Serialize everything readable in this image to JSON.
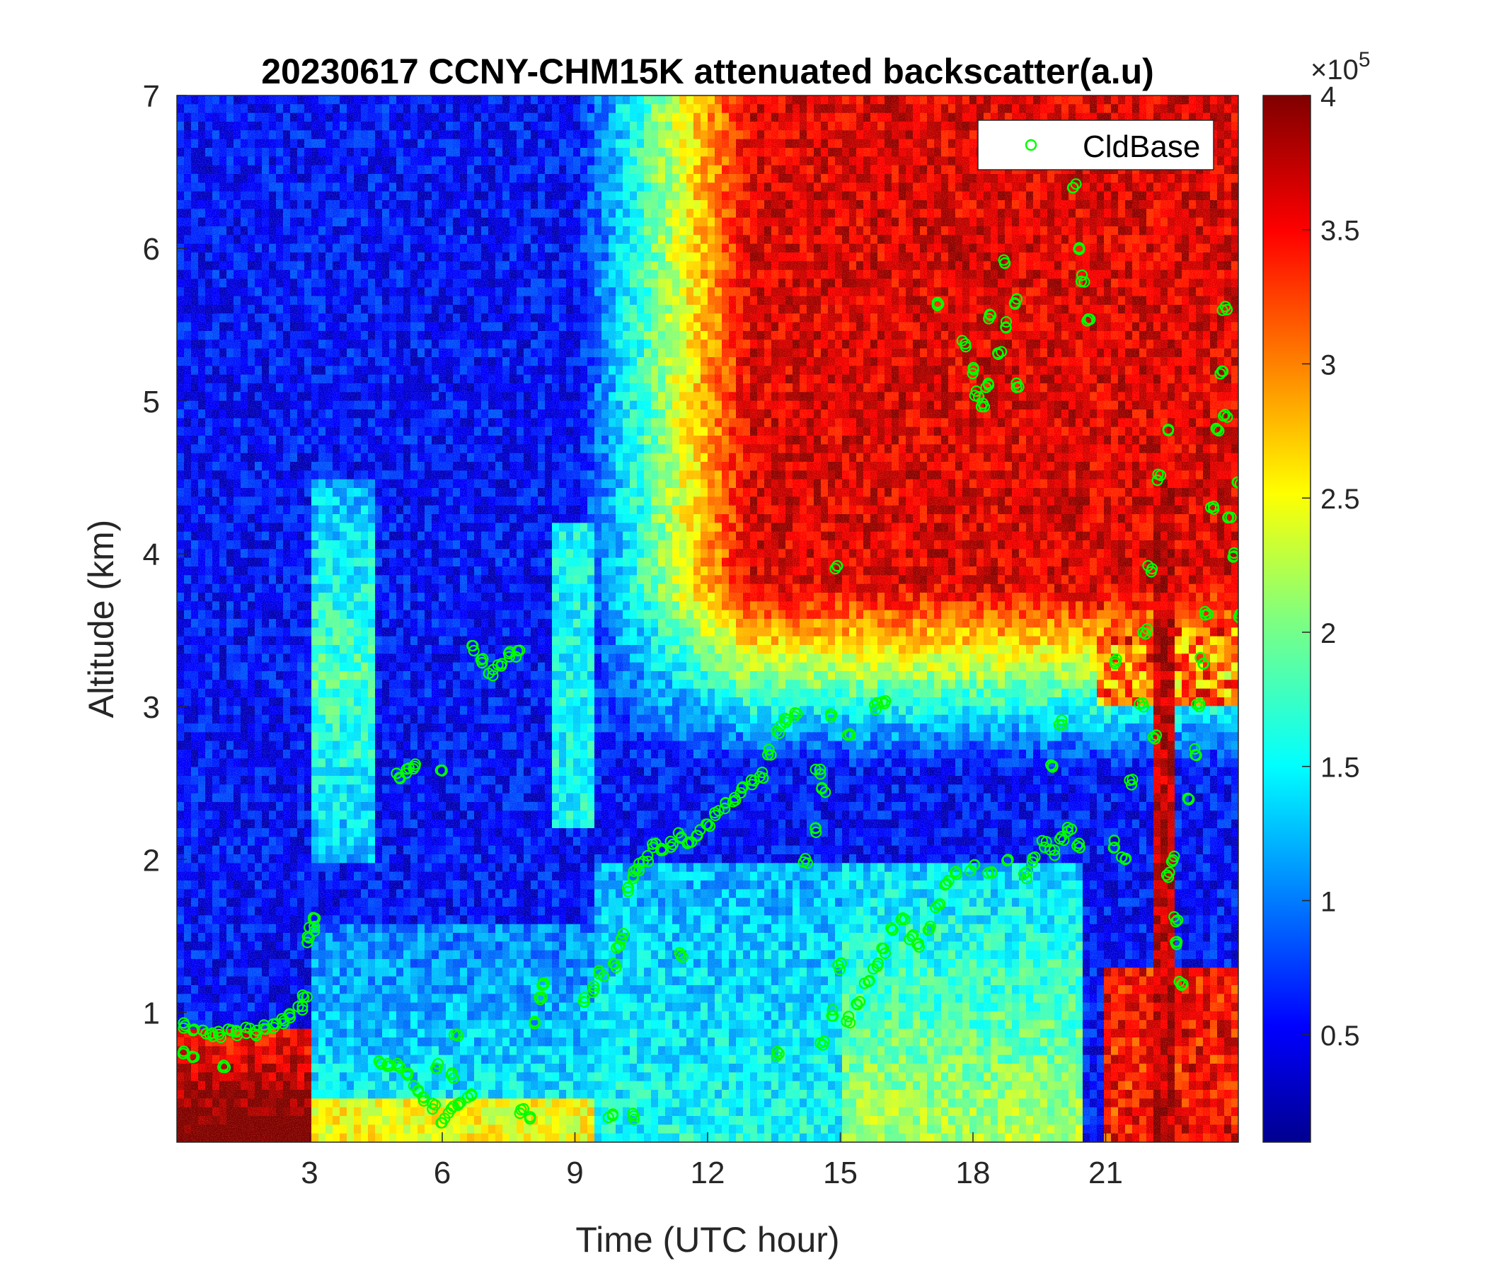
{
  "chart_data": {
    "type": "heatmap",
    "title": "20230617 CCNY-CHM15K attenuated backscatter(a.u)",
    "xlabel": "Time (UTC hour)",
    "ylabel": "Altitude (km)",
    "xlim": [
      0,
      24
    ],
    "ylim": [
      0.15,
      7
    ],
    "x_ticks": [
      3,
      6,
      9,
      12,
      15,
      18,
      21
    ],
    "x_tick_labels": [
      "3",
      "6",
      "9",
      "12",
      "15",
      "18",
      "21"
    ],
    "y_ticks": [
      1,
      2,
      3,
      4,
      5,
      6,
      7
    ],
    "y_tick_labels": [
      "1",
      "2",
      "3",
      "4",
      "5",
      "6",
      "7"
    ],
    "colorbar": {
      "clim": [
        0.1,
        4
      ],
      "ticks": [
        0.5,
        1,
        1.5,
        2,
        2.5,
        3,
        3.5,
        4
      ],
      "tick_labels": [
        "0.5",
        "1",
        "1.5",
        "2",
        "2.5",
        "3",
        "3.5",
        "4"
      ],
      "multiplier_prefix": "×10",
      "multiplier_exponent": "5",
      "colormap": "jet"
    },
    "legend": {
      "position": "top-right",
      "entries": [
        "CldBase"
      ]
    },
    "series": [
      {
        "name": "CldBase",
        "marker": "circle-open",
        "color": "#00ff00",
        "points": [
          [
            0.1,
            0.73
          ],
          [
            0.2,
            0.92
          ],
          [
            0.4,
            0.9
          ],
          [
            0.6,
            0.86
          ],
          [
            0.8,
            0.86
          ],
          [
            1.0,
            0.85
          ],
          [
            1.2,
            0.87
          ],
          [
            1.4,
            0.86
          ],
          [
            1.6,
            0.88
          ],
          [
            1.8,
            0.87
          ],
          [
            2.0,
            0.9
          ],
          [
            2.2,
            0.91
          ],
          [
            2.4,
            0.94
          ],
          [
            2.6,
            0.97
          ],
          [
            2.8,
            1.04
          ],
          [
            2.9,
            1.1
          ],
          [
            3.0,
            1.48
          ],
          [
            3.05,
            1.55
          ],
          [
            3.1,
            1.6
          ],
          [
            1.1,
            0.65
          ],
          [
            0.4,
            0.7
          ],
          [
            4.6,
            0.68
          ],
          [
            4.8,
            0.67
          ],
          [
            5.0,
            0.64
          ],
          [
            5.2,
            0.58
          ],
          [
            5.4,
            0.5
          ],
          [
            5.6,
            0.44
          ],
          [
            5.8,
            0.38
          ],
          [
            6.0,
            0.3
          ],
          [
            6.2,
            0.36
          ],
          [
            6.4,
            0.4
          ],
          [
            6.6,
            0.45
          ],
          [
            6.2,
            0.58
          ],
          [
            5.9,
            0.65
          ],
          [
            6.3,
            0.86
          ],
          [
            5.0,
            2.55
          ],
          [
            5.2,
            2.58
          ],
          [
            5.4,
            2.6
          ],
          [
            6.0,
            2.6
          ],
          [
            6.7,
            3.38
          ],
          [
            6.9,
            3.3
          ],
          [
            7.1,
            3.22
          ],
          [
            7.3,
            3.28
          ],
          [
            7.5,
            3.34
          ],
          [
            7.7,
            3.35
          ],
          [
            7.8,
            0.35
          ],
          [
            8.0,
            0.32
          ],
          [
            8.1,
            0.95
          ],
          [
            8.2,
            1.1
          ],
          [
            8.3,
            1.18
          ],
          [
            9.2,
            1.08
          ],
          [
            9.4,
            1.15
          ],
          [
            9.6,
            1.25
          ],
          [
            9.9,
            1.3
          ],
          [
            10.0,
            1.42
          ],
          [
            10.1,
            1.5
          ],
          [
            10.2,
            1.8
          ],
          [
            10.3,
            1.9
          ],
          [
            10.4,
            1.95
          ],
          [
            10.6,
            2.0
          ],
          [
            10.8,
            2.08
          ],
          [
            11.0,
            2.05
          ],
          [
            11.2,
            2.1
          ],
          [
            11.4,
            2.15
          ],
          [
            11.6,
            2.1
          ],
          [
            11.8,
            2.18
          ],
          [
            12.0,
            2.22
          ],
          [
            12.2,
            2.3
          ],
          [
            12.4,
            2.35
          ],
          [
            12.6,
            2.4
          ],
          [
            12.8,
            2.45
          ],
          [
            13.0,
            2.5
          ],
          [
            13.2,
            2.55
          ],
          [
            13.4,
            2.7
          ],
          [
            13.6,
            2.85
          ],
          [
            13.8,
            2.92
          ],
          [
            14.0,
            2.95
          ],
          [
            11.4,
            1.38
          ],
          [
            13.6,
            0.72
          ],
          [
            9.8,
            0.32
          ],
          [
            10.3,
            0.32
          ],
          [
            14.2,
            2.0
          ],
          [
            14.4,
            2.2
          ],
          [
            14.6,
            2.45
          ],
          [
            14.5,
            2.58
          ],
          [
            14.8,
            2.95
          ],
          [
            15.2,
            2.8
          ],
          [
            15.8,
            3.0
          ],
          [
            16.0,
            3.02
          ],
          [
            14.6,
            0.8
          ],
          [
            14.8,
            1.0
          ],
          [
            15.0,
            1.3
          ],
          [
            15.2,
            0.95
          ],
          [
            15.4,
            1.05
          ],
          [
            15.6,
            1.2
          ],
          [
            15.8,
            1.3
          ],
          [
            16.0,
            1.4
          ],
          [
            16.2,
            1.55
          ],
          [
            16.4,
            1.6
          ],
          [
            16.6,
            1.5
          ],
          [
            16.8,
            1.45
          ],
          [
            17.0,
            1.55
          ],
          [
            17.2,
            1.7
          ],
          [
            17.4,
            1.85
          ],
          [
            17.6,
            1.9
          ],
          [
            14.9,
            3.92
          ],
          [
            17.2,
            5.62
          ],
          [
            17.8,
            5.38
          ],
          [
            18.0,
            5.2
          ],
          [
            18.1,
            5.05
          ],
          [
            18.2,
            4.98
          ],
          [
            18.3,
            5.1
          ],
          [
            18.4,
            5.55
          ],
          [
            18.6,
            5.3
          ],
          [
            18.8,
            5.5
          ],
          [
            19.0,
            5.65
          ],
          [
            19.0,
            5.1
          ],
          [
            18.7,
            5.92
          ],
          [
            18.0,
            1.95
          ],
          [
            18.4,
            1.9
          ],
          [
            18.8,
            2.0
          ],
          [
            19.2,
            1.9
          ],
          [
            19.4,
            2.0
          ],
          [
            19.6,
            2.1
          ],
          [
            19.8,
            2.05
          ],
          [
            20.0,
            2.15
          ],
          [
            20.2,
            2.2
          ],
          [
            20.4,
            2.1
          ],
          [
            19.8,
            2.6
          ],
          [
            20.0,
            2.9
          ],
          [
            20.3,
            6.4
          ],
          [
            20.4,
            6.0
          ],
          [
            20.5,
            5.8
          ],
          [
            20.6,
            5.55
          ],
          [
            21.2,
            2.1
          ],
          [
            21.4,
            2.0
          ],
          [
            21.6,
            2.5
          ],
          [
            21.8,
            3.0
          ],
          [
            21.9,
            3.5
          ],
          [
            22.0,
            3.9
          ],
          [
            22.2,
            4.5
          ],
          [
            22.4,
            4.8
          ],
          [
            21.2,
            3.3
          ],
          [
            22.1,
            2.8
          ],
          [
            22.4,
            1.9
          ],
          [
            22.5,
            2.0
          ],
          [
            22.6,
            1.6
          ],
          [
            22.7,
            1.2
          ],
          [
            22.6,
            1.45
          ],
          [
            22.9,
            2.4
          ],
          [
            23.0,
            2.7
          ],
          [
            23.1,
            3.0
          ],
          [
            23.2,
            3.3
          ],
          [
            23.3,
            3.6
          ],
          [
            23.4,
            4.3
          ],
          [
            23.5,
            4.8
          ],
          [
            23.6,
            5.2
          ],
          [
            23.7,
            4.9
          ],
          [
            23.8,
            4.25
          ],
          [
            23.9,
            4.0
          ],
          [
            24.0,
            3.6
          ],
          [
            24.0,
            4.45
          ],
          [
            23.7,
            5.6
          ]
        ]
      }
    ]
  }
}
